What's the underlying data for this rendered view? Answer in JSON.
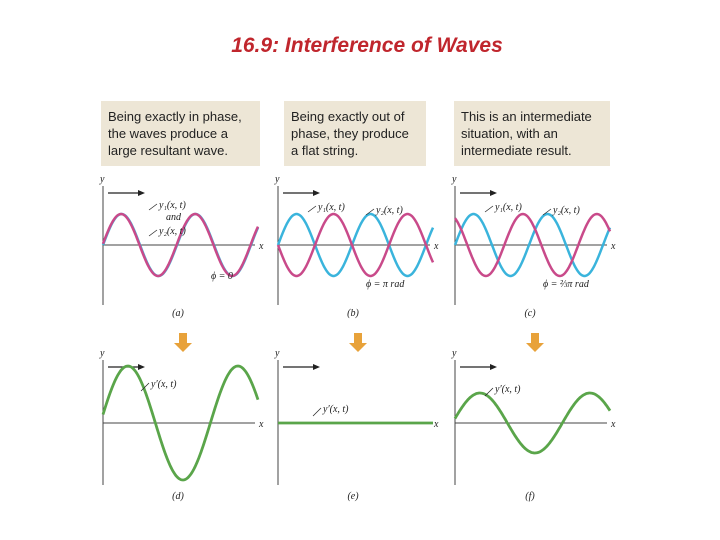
{
  "title": "16.9: Interference of Waves",
  "captions": [
    {
      "lines": [
        "Being exactly in phase,",
        "the waves produce a",
        "large resultant wave."
      ]
    },
    {
      "lines": [
        "Being exactly out of",
        "phase, they produce",
        "a flat string."
      ]
    },
    {
      "lines": [
        "This is an intermediate",
        "situation, with an",
        "intermediate result."
      ]
    }
  ],
  "panels": [
    {
      "label": "(a)",
      "y_axis": "y",
      "x_axis": "x",
      "curve_labels": [
        "y₁(x, t)",
        "and",
        "y₂(x, t)"
      ],
      "phase": "ϕ = 0"
    },
    {
      "label": "(b)",
      "y_axis": "y",
      "x_axis": "x",
      "curve_labels": [
        "y₁(x, t)",
        "y₂(x, t)"
      ],
      "phase": "ϕ = π rad"
    },
    {
      "label": "(c)",
      "y_axis": "y",
      "x_axis": "x",
      "curve_labels": [
        "y₁(x, t)",
        "y₂(x, t)"
      ],
      "phase": "ϕ = ⅔π rad"
    },
    {
      "label": "(d)",
      "y_axis": "y",
      "x_axis": "x",
      "curve_labels": [
        "y′(x, t)"
      ]
    },
    {
      "label": "(e)",
      "y_axis": "y",
      "x_axis": "x",
      "curve_labels": [
        "y′(x, t)"
      ]
    },
    {
      "label": "(f)",
      "y_axis": "y",
      "x_axis": "x",
      "curve_labels": [
        "y′(x, t)"
      ]
    }
  ]
}
